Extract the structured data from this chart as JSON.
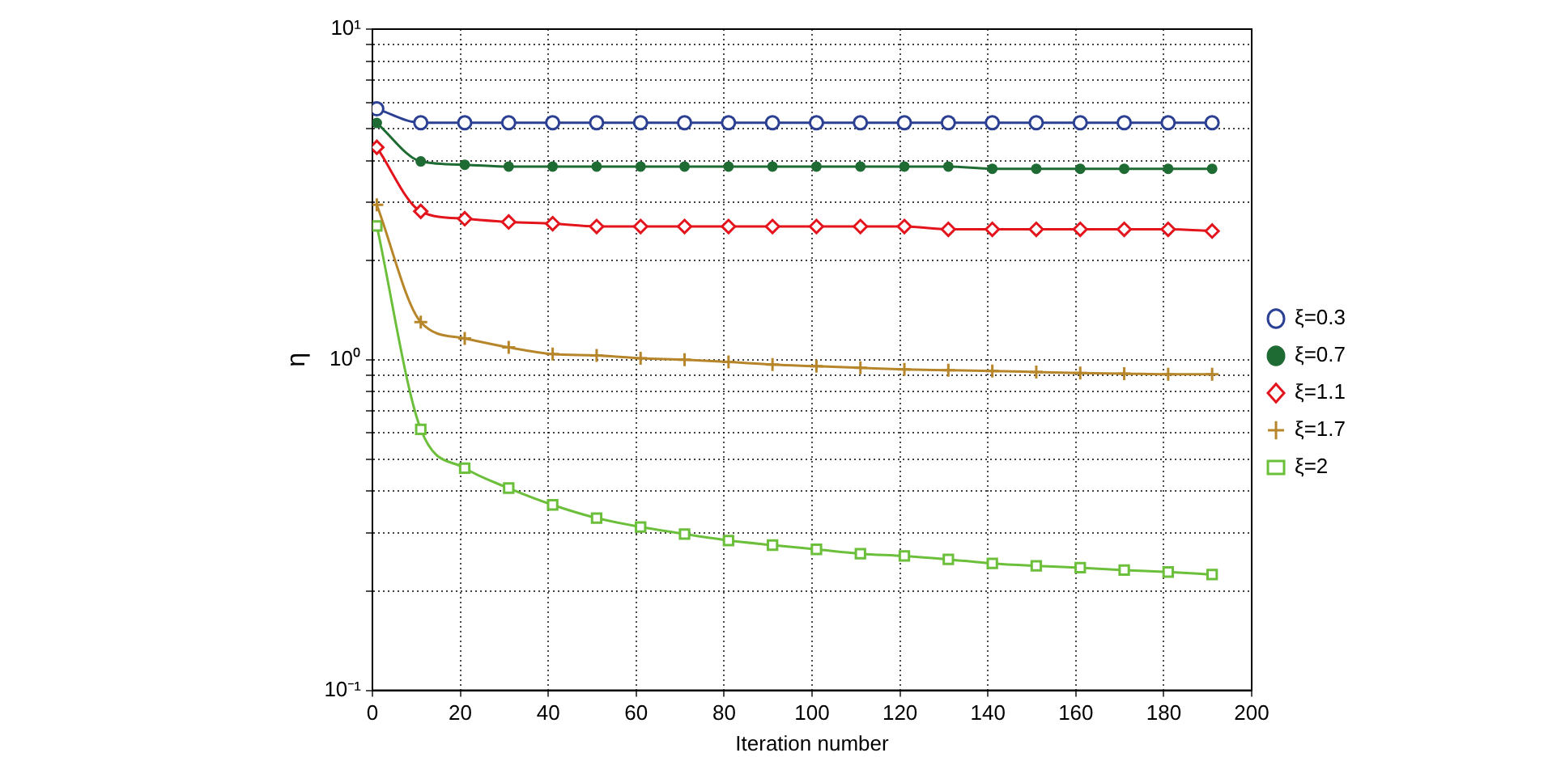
{
  "chart_data": {
    "type": "line",
    "xlabel": "Iteration number",
    "ylabel": "η",
    "log": "y",
    "x": [
      1,
      11,
      21,
      31,
      41,
      51,
      61,
      71,
      81,
      91,
      101,
      111,
      121,
      131,
      141,
      151,
      161,
      171,
      181,
      191
    ],
    "xlim": [
      0,
      200
    ],
    "xticks": [
      0,
      20,
      40,
      60,
      80,
      100,
      120,
      140,
      160,
      180,
      200
    ],
    "ylim": [
      0.1,
      10
    ],
    "yticks": [
      {
        "value": 0.1,
        "label": "10⁻¹"
      },
      {
        "value": 0.2,
        "label": null
      },
      {
        "value": 0.3,
        "label": null
      },
      {
        "value": 0.4,
        "label": null
      },
      {
        "value": 0.5,
        "label": null
      },
      {
        "value": 0.6,
        "label": null
      },
      {
        "value": 0.7,
        "label": null
      },
      {
        "value": 0.8,
        "label": null
      },
      {
        "value": 0.9,
        "label": null
      },
      {
        "value": 1,
        "label": "10⁰"
      },
      {
        "value": 2,
        "label": null
      },
      {
        "value": 3,
        "label": null
      },
      {
        "value": 4,
        "label": null
      },
      {
        "value": 5,
        "label": null
      },
      {
        "value": 6,
        "label": null
      },
      {
        "value": 7,
        "label": null
      },
      {
        "value": 8,
        "label": null
      },
      {
        "value": 9,
        "label": null
      },
      {
        "value": 10,
        "label": "10¹"
      }
    ],
    "grid": true,
    "legend": "right",
    "line_style": "solid",
    "series": [
      {
        "name": "ξ=0.3",
        "color": "#2b3f93",
        "marker": "circle",
        "values": [
          5.74,
          5.21,
          5.21,
          5.21,
          5.21,
          5.21,
          5.21,
          5.21,
          5.21,
          5.21,
          5.21,
          5.21,
          5.21,
          5.21,
          5.21,
          5.21,
          5.21,
          5.21,
          5.21,
          5.21
        ]
      },
      {
        "name": "ξ=0.7",
        "color": "#1e6b33",
        "marker": "dot",
        "values": [
          5.2,
          3.98,
          3.89,
          3.84,
          3.84,
          3.84,
          3.84,
          3.84,
          3.84,
          3.84,
          3.84,
          3.84,
          3.84,
          3.84,
          3.78,
          3.78,
          3.78,
          3.78,
          3.78,
          3.78
        ]
      },
      {
        "name": "ξ=1.1",
        "color": "#e3141c",
        "marker": "diamond",
        "values": [
          4.39,
          2.81,
          2.67,
          2.61,
          2.58,
          2.53,
          2.53,
          2.53,
          2.53,
          2.53,
          2.53,
          2.53,
          2.53,
          2.48,
          2.48,
          2.48,
          2.48,
          2.48,
          2.48,
          2.45
        ]
      },
      {
        "name": "ξ=1.7",
        "color": "#b8862a",
        "marker": "cross",
        "values": [
          2.94,
          1.3,
          1.16,
          1.09,
          1.04,
          1.03,
          1.01,
          1,
          0.985,
          0.967,
          0.956,
          0.945,
          0.935,
          0.93,
          0.925,
          0.918,
          0.911,
          0.908,
          0.904,
          0.904
        ]
      },
      {
        "name": "ξ=2",
        "color": "#6bbf3a",
        "marker": "square",
        "values": [
          2.54,
          0.616,
          0.47,
          0.409,
          0.364,
          0.332,
          0.312,
          0.297,
          0.284,
          0.275,
          0.267,
          0.259,
          0.255,
          0.249,
          0.242,
          0.238,
          0.235,
          0.231,
          0.228,
          0.224
        ]
      }
    ]
  }
}
